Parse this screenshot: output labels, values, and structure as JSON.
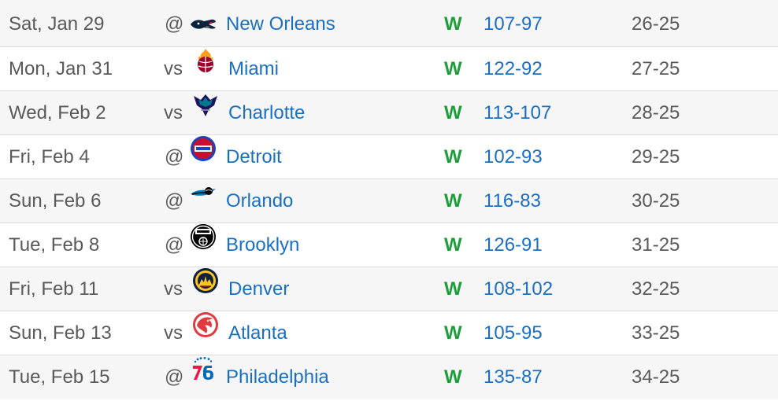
{
  "games": [
    {
      "date": "Sat, Jan 29",
      "home_away": "@",
      "team": "New Orleans",
      "logo": "pelicans-logo-icon",
      "result": "W",
      "score": "107-97",
      "record": "26-25"
    },
    {
      "date": "Mon, Jan 31",
      "home_away": "vs",
      "team": "Miami",
      "logo": "heat-logo-icon",
      "result": "W",
      "score": "122-92",
      "record": "27-25"
    },
    {
      "date": "Wed, Feb 2",
      "home_away": "vs",
      "team": "Charlotte",
      "logo": "hornets-logo-icon",
      "result": "W",
      "score": "113-107",
      "record": "28-25"
    },
    {
      "date": "Fri, Feb 4",
      "home_away": "@",
      "team": "Detroit",
      "logo": "pistons-logo-icon",
      "result": "W",
      "score": "102-93",
      "record": "29-25"
    },
    {
      "date": "Sun, Feb 6",
      "home_away": "@",
      "team": "Orlando",
      "logo": "magic-logo-icon",
      "result": "W",
      "score": "116-83",
      "record": "30-25"
    },
    {
      "date": "Tue, Feb 8",
      "home_away": "@",
      "team": "Brooklyn",
      "logo": "nets-logo-icon",
      "result": "W",
      "score": "126-91",
      "record": "31-25"
    },
    {
      "date": "Fri, Feb 11",
      "home_away": "vs",
      "team": "Denver",
      "logo": "nuggets-logo-icon",
      "result": "W",
      "score": "108-102",
      "record": "32-25"
    },
    {
      "date": "Sun, Feb 13",
      "home_away": "vs",
      "team": "Atlanta",
      "logo": "hawks-logo-icon",
      "result": "W",
      "score": "105-95",
      "record": "33-25"
    },
    {
      "date": "Tue, Feb 15",
      "home_away": "@",
      "team": "Philadelphia",
      "logo": "76ers-logo-icon",
      "result": "W",
      "score": "135-87",
      "record": "34-25"
    }
  ],
  "colors": {
    "link": "#1a6fc2",
    "win": "#1e9e3a",
    "muted": "#5a5a5a",
    "row_alt": "#f6f6f6",
    "divider": "#dcdcdc"
  }
}
